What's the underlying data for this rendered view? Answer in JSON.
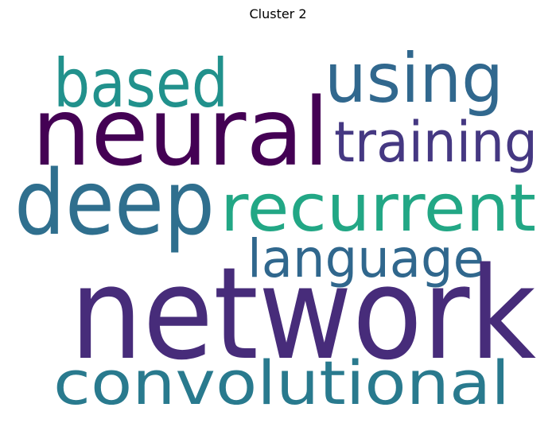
{
  "title": "Cluster 2",
  "words": [
    {
      "text": "network",
      "color": "#472c7a"
    },
    {
      "text": "neural",
      "color": "#440154"
    },
    {
      "text": "deep",
      "color": "#2f6f8e"
    },
    {
      "text": "convolutional",
      "color": "#297a8e"
    },
    {
      "text": "recurrent",
      "color": "#22a785"
    },
    {
      "text": "language",
      "color": "#30678d"
    },
    {
      "text": "using",
      "color": "#31688e"
    },
    {
      "text": "based",
      "color": "#21918c"
    },
    {
      "text": "training",
      "color": "#453882"
    }
  ]
}
